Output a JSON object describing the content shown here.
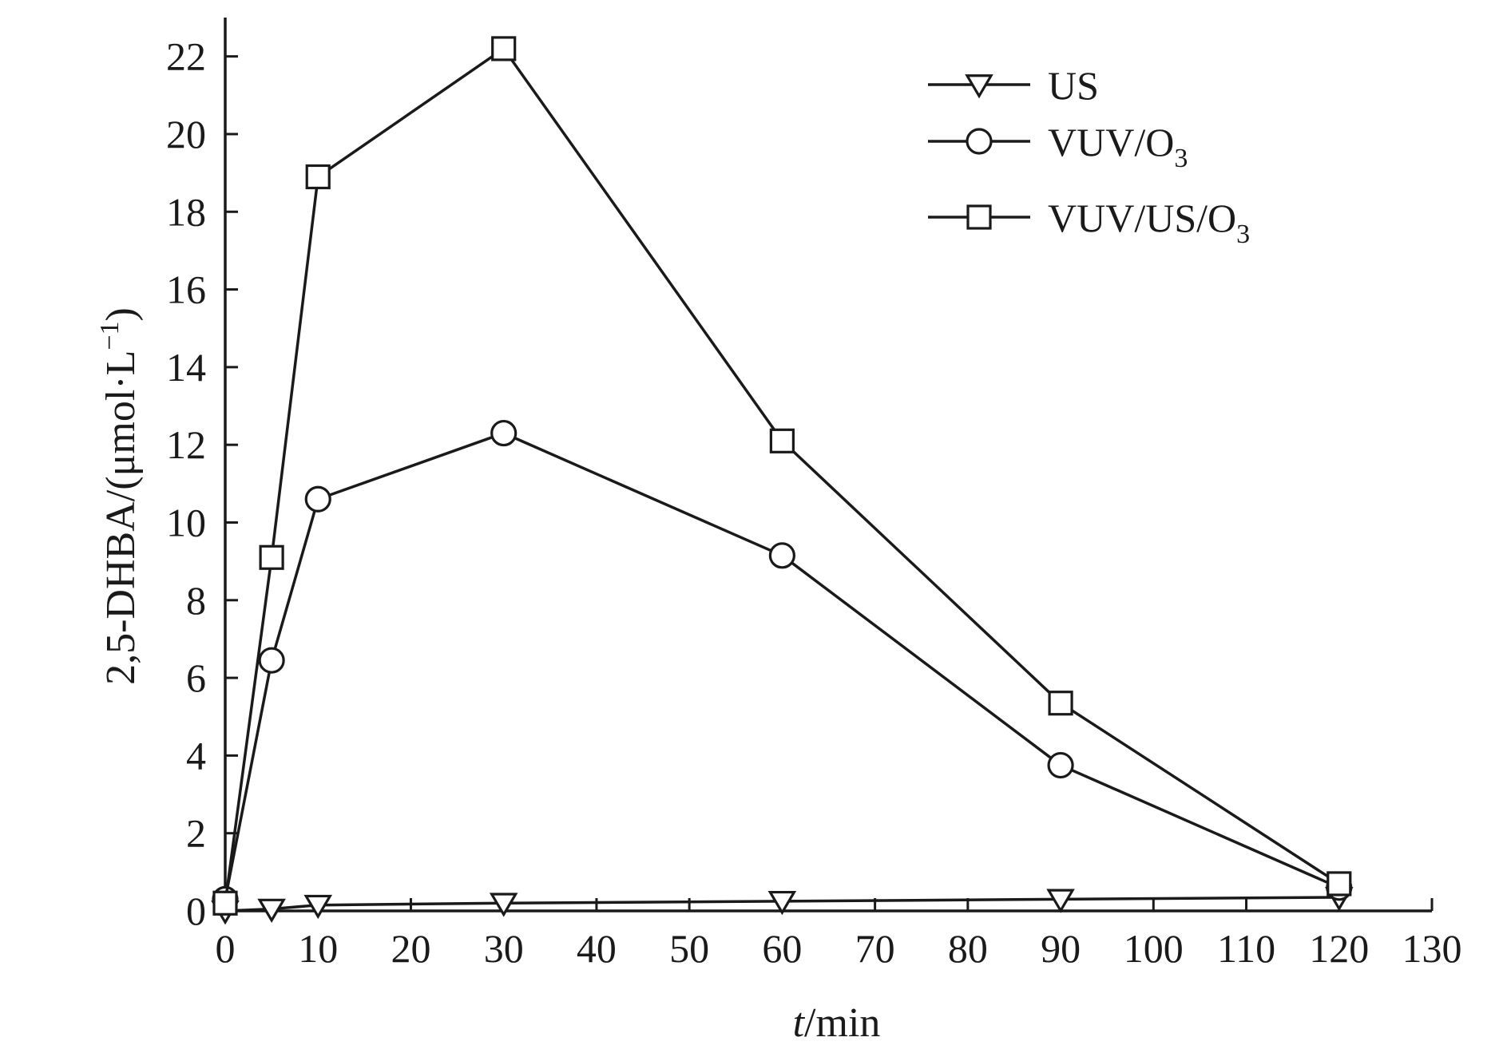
{
  "chart_data": {
    "type": "line",
    "xlabel": {
      "italic": "t",
      "rest": "/min"
    },
    "ylabel": {
      "main": "2,5-DHBA/(μmol·L",
      "sup": "−1",
      "close": ")"
    },
    "xlim": [
      0,
      130
    ],
    "ylim": [
      0,
      23
    ],
    "xticks": [
      0,
      10,
      20,
      30,
      40,
      50,
      60,
      70,
      80,
      90,
      100,
      110,
      120,
      130
    ],
    "yticks": [
      0,
      2,
      4,
      6,
      8,
      10,
      12,
      14,
      16,
      18,
      20,
      22
    ],
    "grid": false,
    "legend_position": "top-right",
    "series": [
      {
        "name": "US",
        "name_parts": [
          {
            "text": "US"
          }
        ],
        "marker": "triangle-down",
        "x": [
          0,
          5,
          10,
          30,
          60,
          90,
          120
        ],
        "y": [
          0,
          0.05,
          0.15,
          0.2,
          0.25,
          0.3,
          0.35
        ]
      },
      {
        "name": "VUV/O3",
        "name_parts": [
          {
            "text": "VUV/O"
          },
          {
            "text": "3",
            "sub": true
          }
        ],
        "marker": "circle",
        "x": [
          0,
          5,
          10,
          30,
          60,
          90,
          120
        ],
        "y": [
          0.3,
          6.45,
          10.6,
          12.3,
          9.15,
          3.75,
          0.6
        ]
      },
      {
        "name": "VUV/US/O3",
        "name_parts": [
          {
            "text": "VUV/US/O"
          },
          {
            "text": "3",
            "sub": true
          }
        ],
        "marker": "square",
        "x": [
          0,
          5,
          10,
          30,
          60,
          90,
          120
        ],
        "y": [
          0.2,
          9.1,
          18.9,
          22.2,
          12.1,
          5.35,
          0.7
        ]
      }
    ]
  }
}
